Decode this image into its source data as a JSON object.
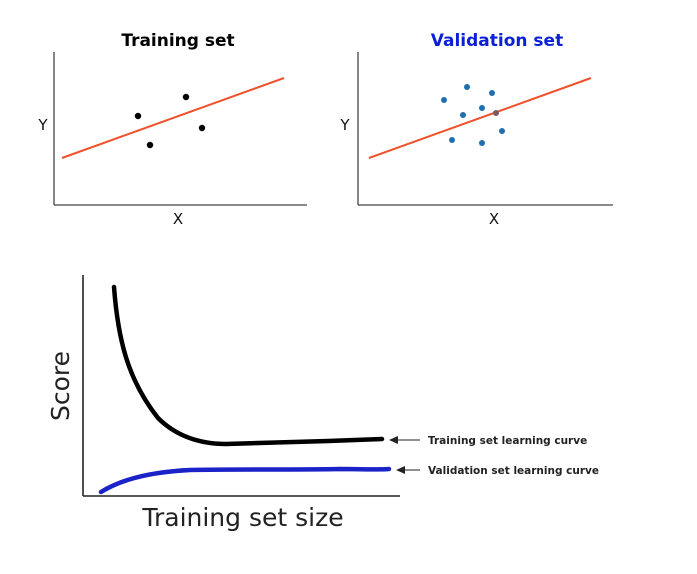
{
  "top_left": {
    "title": "Training set",
    "ylabel": "Y",
    "xlabel": "X",
    "points_color": "#000000",
    "line_color": "#f0502a"
  },
  "top_right": {
    "title": "Validation set",
    "title_color": "#0a1fd6",
    "ylabel": "Y",
    "xlabel": "X",
    "points_color": "#1f6fb0",
    "line_color": "#f0502a"
  },
  "bottom": {
    "ylabel": "Score",
    "xlabel": "Training set size",
    "training_curve_label": "Training set learning curve",
    "validation_curve_label": "Validation set learning curve",
    "training_curve_color": "#000000",
    "validation_curve_color": "#1a22c8"
  }
}
